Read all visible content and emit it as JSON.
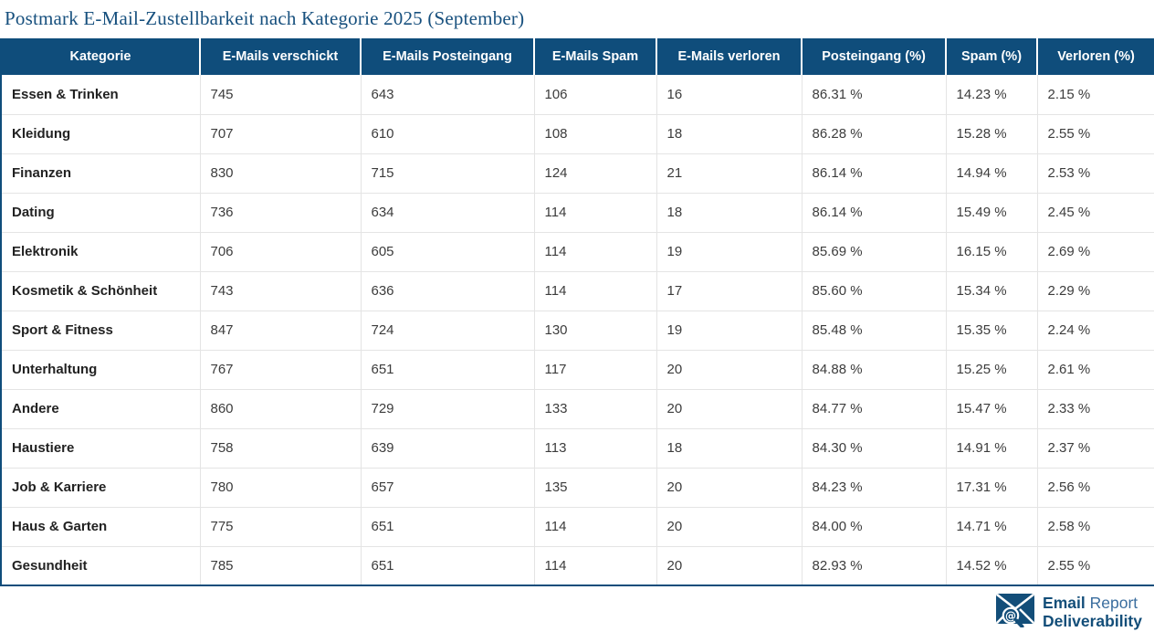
{
  "title": "Postmark E-Mail-Zustellbarkeit nach Kategorie 2025 (September)",
  "colors": {
    "header_bg": "#0F4D7B",
    "title_text": "#17507E",
    "outer_border": "#0F4D7B",
    "grid_line": "#E4E4E4",
    "body_text": "#3C3C3C",
    "logo_dark_blue": "#134E79",
    "logo_light_blue": "#3A6D9E"
  },
  "table": {
    "headers": [
      "Kategorie",
      "E-Mails verschickt",
      "E-Mails Posteingang",
      "E-Mails Spam",
      "E-Mails verloren",
      "Posteingang (%)",
      "Spam (%)",
      "Verloren (%)"
    ],
    "rows": [
      [
        "Essen & Trinken",
        "745",
        "643",
        "106",
        "16",
        "86.31 %",
        "14.23 %",
        "2.15 %"
      ],
      [
        "Kleidung",
        "707",
        "610",
        "108",
        "18",
        "86.28 %",
        "15.28 %",
        "2.55 %"
      ],
      [
        "Finanzen",
        "830",
        "715",
        "124",
        "21",
        "86.14 %",
        "14.94 %",
        "2.53 %"
      ],
      [
        "Dating",
        "736",
        "634",
        "114",
        "18",
        "86.14 %",
        "15.49 %",
        "2.45 %"
      ],
      [
        "Elektronik",
        "706",
        "605",
        "114",
        "19",
        "85.69 %",
        "16.15 %",
        "2.69 %"
      ],
      [
        "Kosmetik & Schönheit",
        "743",
        "636",
        "114",
        "17",
        "85.60 %",
        "15.34 %",
        "2.29 %"
      ],
      [
        "Sport & Fitness",
        "847",
        "724",
        "130",
        "19",
        "85.48 %",
        "15.35 %",
        "2.24 %"
      ],
      [
        "Unterhaltung",
        "767",
        "651",
        "117",
        "20",
        "84.88 %",
        "15.25 %",
        "2.61 %"
      ],
      [
        "Andere",
        "860",
        "729",
        "133",
        "20",
        "84.77 %",
        "15.47 %",
        "2.33 %"
      ],
      [
        "Haustiere",
        "758",
        "639",
        "113",
        "18",
        "84.30 %",
        "14.91 %",
        "2.37 %"
      ],
      [
        "Job & Karriere",
        "780",
        "657",
        "135",
        "20",
        "84.23 %",
        "17.31 %",
        "2.56 %"
      ],
      [
        "Haus & Garten",
        "775",
        "651",
        "114",
        "20",
        "84.00 %",
        "14.71 %",
        "2.58 %"
      ],
      [
        "Gesundheit",
        "785",
        "651",
        "114",
        "20",
        "82.93 %",
        "14.52 %",
        "2.55 %"
      ]
    ]
  },
  "chart_data": {
    "type": "table",
    "title": "Postmark E-Mail-Zustellbarkeit nach Kategorie 2025 (September)",
    "columns": [
      "Kategorie",
      "E-Mails verschickt",
      "E-Mails Posteingang",
      "E-Mails Spam",
      "E-Mails verloren",
      "Posteingang (%)",
      "Spam (%)",
      "Verloren (%)"
    ],
    "rows": [
      [
        "Essen & Trinken",
        745,
        643,
        106,
        16,
        86.31,
        14.23,
        2.15
      ],
      [
        "Kleidung",
        707,
        610,
        108,
        18,
        86.28,
        15.28,
        2.55
      ],
      [
        "Finanzen",
        830,
        715,
        124,
        21,
        86.14,
        14.94,
        2.53
      ],
      [
        "Dating",
        736,
        634,
        114,
        18,
        86.14,
        15.49,
        2.45
      ],
      [
        "Elektronik",
        706,
        605,
        114,
        19,
        85.69,
        16.15,
        2.69
      ],
      [
        "Kosmetik & Schönheit",
        743,
        636,
        114,
        17,
        85.6,
        15.34,
        2.29
      ],
      [
        "Sport & Fitness",
        847,
        724,
        130,
        19,
        85.48,
        15.35,
        2.24
      ],
      [
        "Unterhaltung",
        767,
        651,
        117,
        20,
        84.88,
        15.25,
        2.61
      ],
      [
        "Andere",
        860,
        729,
        133,
        20,
        84.77,
        15.47,
        2.33
      ],
      [
        "Haustiere",
        758,
        639,
        113,
        18,
        84.3,
        14.91,
        2.37
      ],
      [
        "Job & Karriere",
        780,
        657,
        135,
        20,
        84.23,
        17.31,
        2.56
      ],
      [
        "Haus & Garten",
        775,
        651,
        114,
        20,
        84.0,
        14.71,
        2.58
      ],
      [
        "Gesundheit",
        785,
        651,
        114,
        20,
        82.93,
        14.52,
        2.55
      ]
    ]
  },
  "footer_logo": {
    "line1_bold": "Email",
    "line1_regular": "Report",
    "line2": "Deliverability",
    "icon": "envelope-magnifier-at-icon"
  }
}
